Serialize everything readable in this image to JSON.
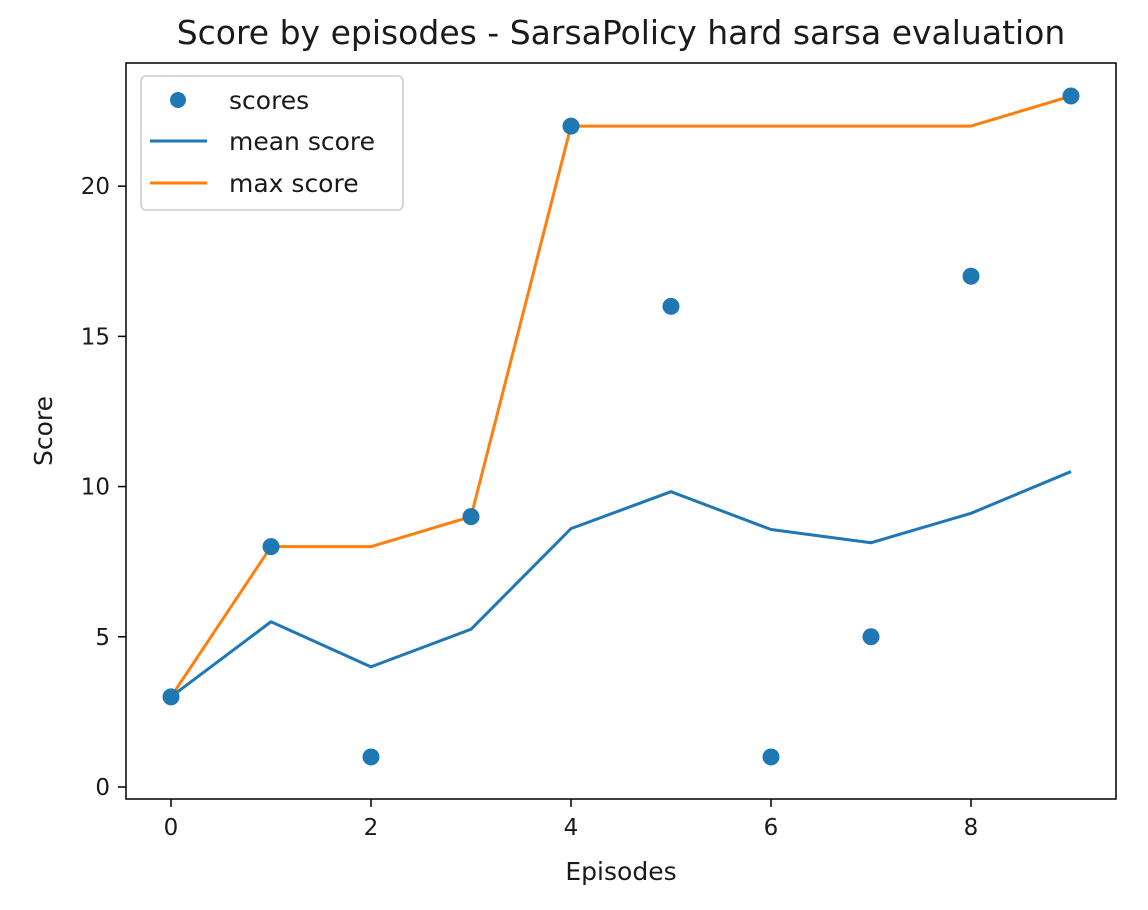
{
  "chart_data": {
    "type": "line",
    "title": "Score by episodes - SarsaPolicy hard sarsa evaluation",
    "xlabel": "Episodes",
    "ylabel": "Score",
    "xlim": [
      -0.45,
      9.45
    ],
    "ylim": [
      -0.4,
      24.1
    ],
    "xticks": [
      0,
      2,
      4,
      6,
      8
    ],
    "yticks": [
      0,
      5,
      10,
      15,
      20
    ],
    "grid": false,
    "legend_position": "top-left",
    "x": [
      0,
      1,
      2,
      3,
      4,
      5,
      6,
      7,
      8,
      9
    ],
    "series": [
      {
        "name": "scores",
        "kind": "scatter",
        "color": "#1f77b4",
        "values": [
          3,
          8,
          1,
          9,
          22,
          16,
          1,
          5,
          17,
          23
        ]
      },
      {
        "name": "mean score",
        "kind": "line",
        "color": "#1f77b4",
        "values": [
          3,
          5.5,
          4,
          5.25,
          8.6,
          9.83,
          8.57,
          8.13,
          9.11,
          10.5
        ]
      },
      {
        "name": "max score",
        "kind": "line",
        "color": "#ff7f0e",
        "values": [
          3,
          8,
          8,
          9,
          22,
          22,
          22,
          22,
          22,
          23
        ]
      }
    ]
  }
}
